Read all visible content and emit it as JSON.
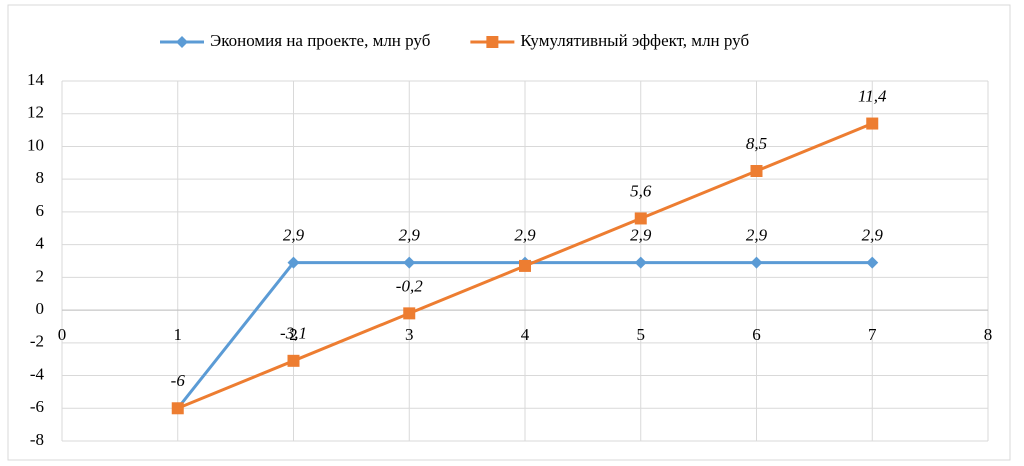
{
  "chart_data": {
    "type": "line",
    "x": [
      1,
      2,
      3,
      4,
      5,
      6,
      7
    ],
    "series": [
      {
        "name": "Экономия на проекте, млн руб",
        "color": "#5b9bd5",
        "marker": "diamond",
        "values": [
          -6,
          2.9,
          2.9,
          2.9,
          2.9,
          2.9,
          2.9
        ],
        "value_labels": [
          null,
          "2,9",
          "2,9",
          "2,9",
          "2,9",
          "2,9",
          "2,9"
        ]
      },
      {
        "name": "Кумулятивный эффект, млн руб",
        "color": "#ed7d31",
        "marker": "square",
        "values": [
          -6,
          -3.1,
          -0.2,
          2.7,
          5.6,
          8.5,
          11.4
        ],
        "value_labels": [
          "-6",
          "-3,1",
          "-0,2",
          null,
          "5,6",
          "8,5",
          "11,4"
        ]
      }
    ],
    "xlim": [
      0,
      8
    ],
    "xticks": [
      0,
      1,
      2,
      3,
      4,
      5,
      6,
      7,
      8
    ],
    "ylim": [
      -8,
      14
    ],
    "yticks": [
      -8,
      -6,
      -4,
      -2,
      0,
      2,
      4,
      6,
      8,
      10,
      12,
      14
    ],
    "grid": true,
    "legend": "top"
  }
}
